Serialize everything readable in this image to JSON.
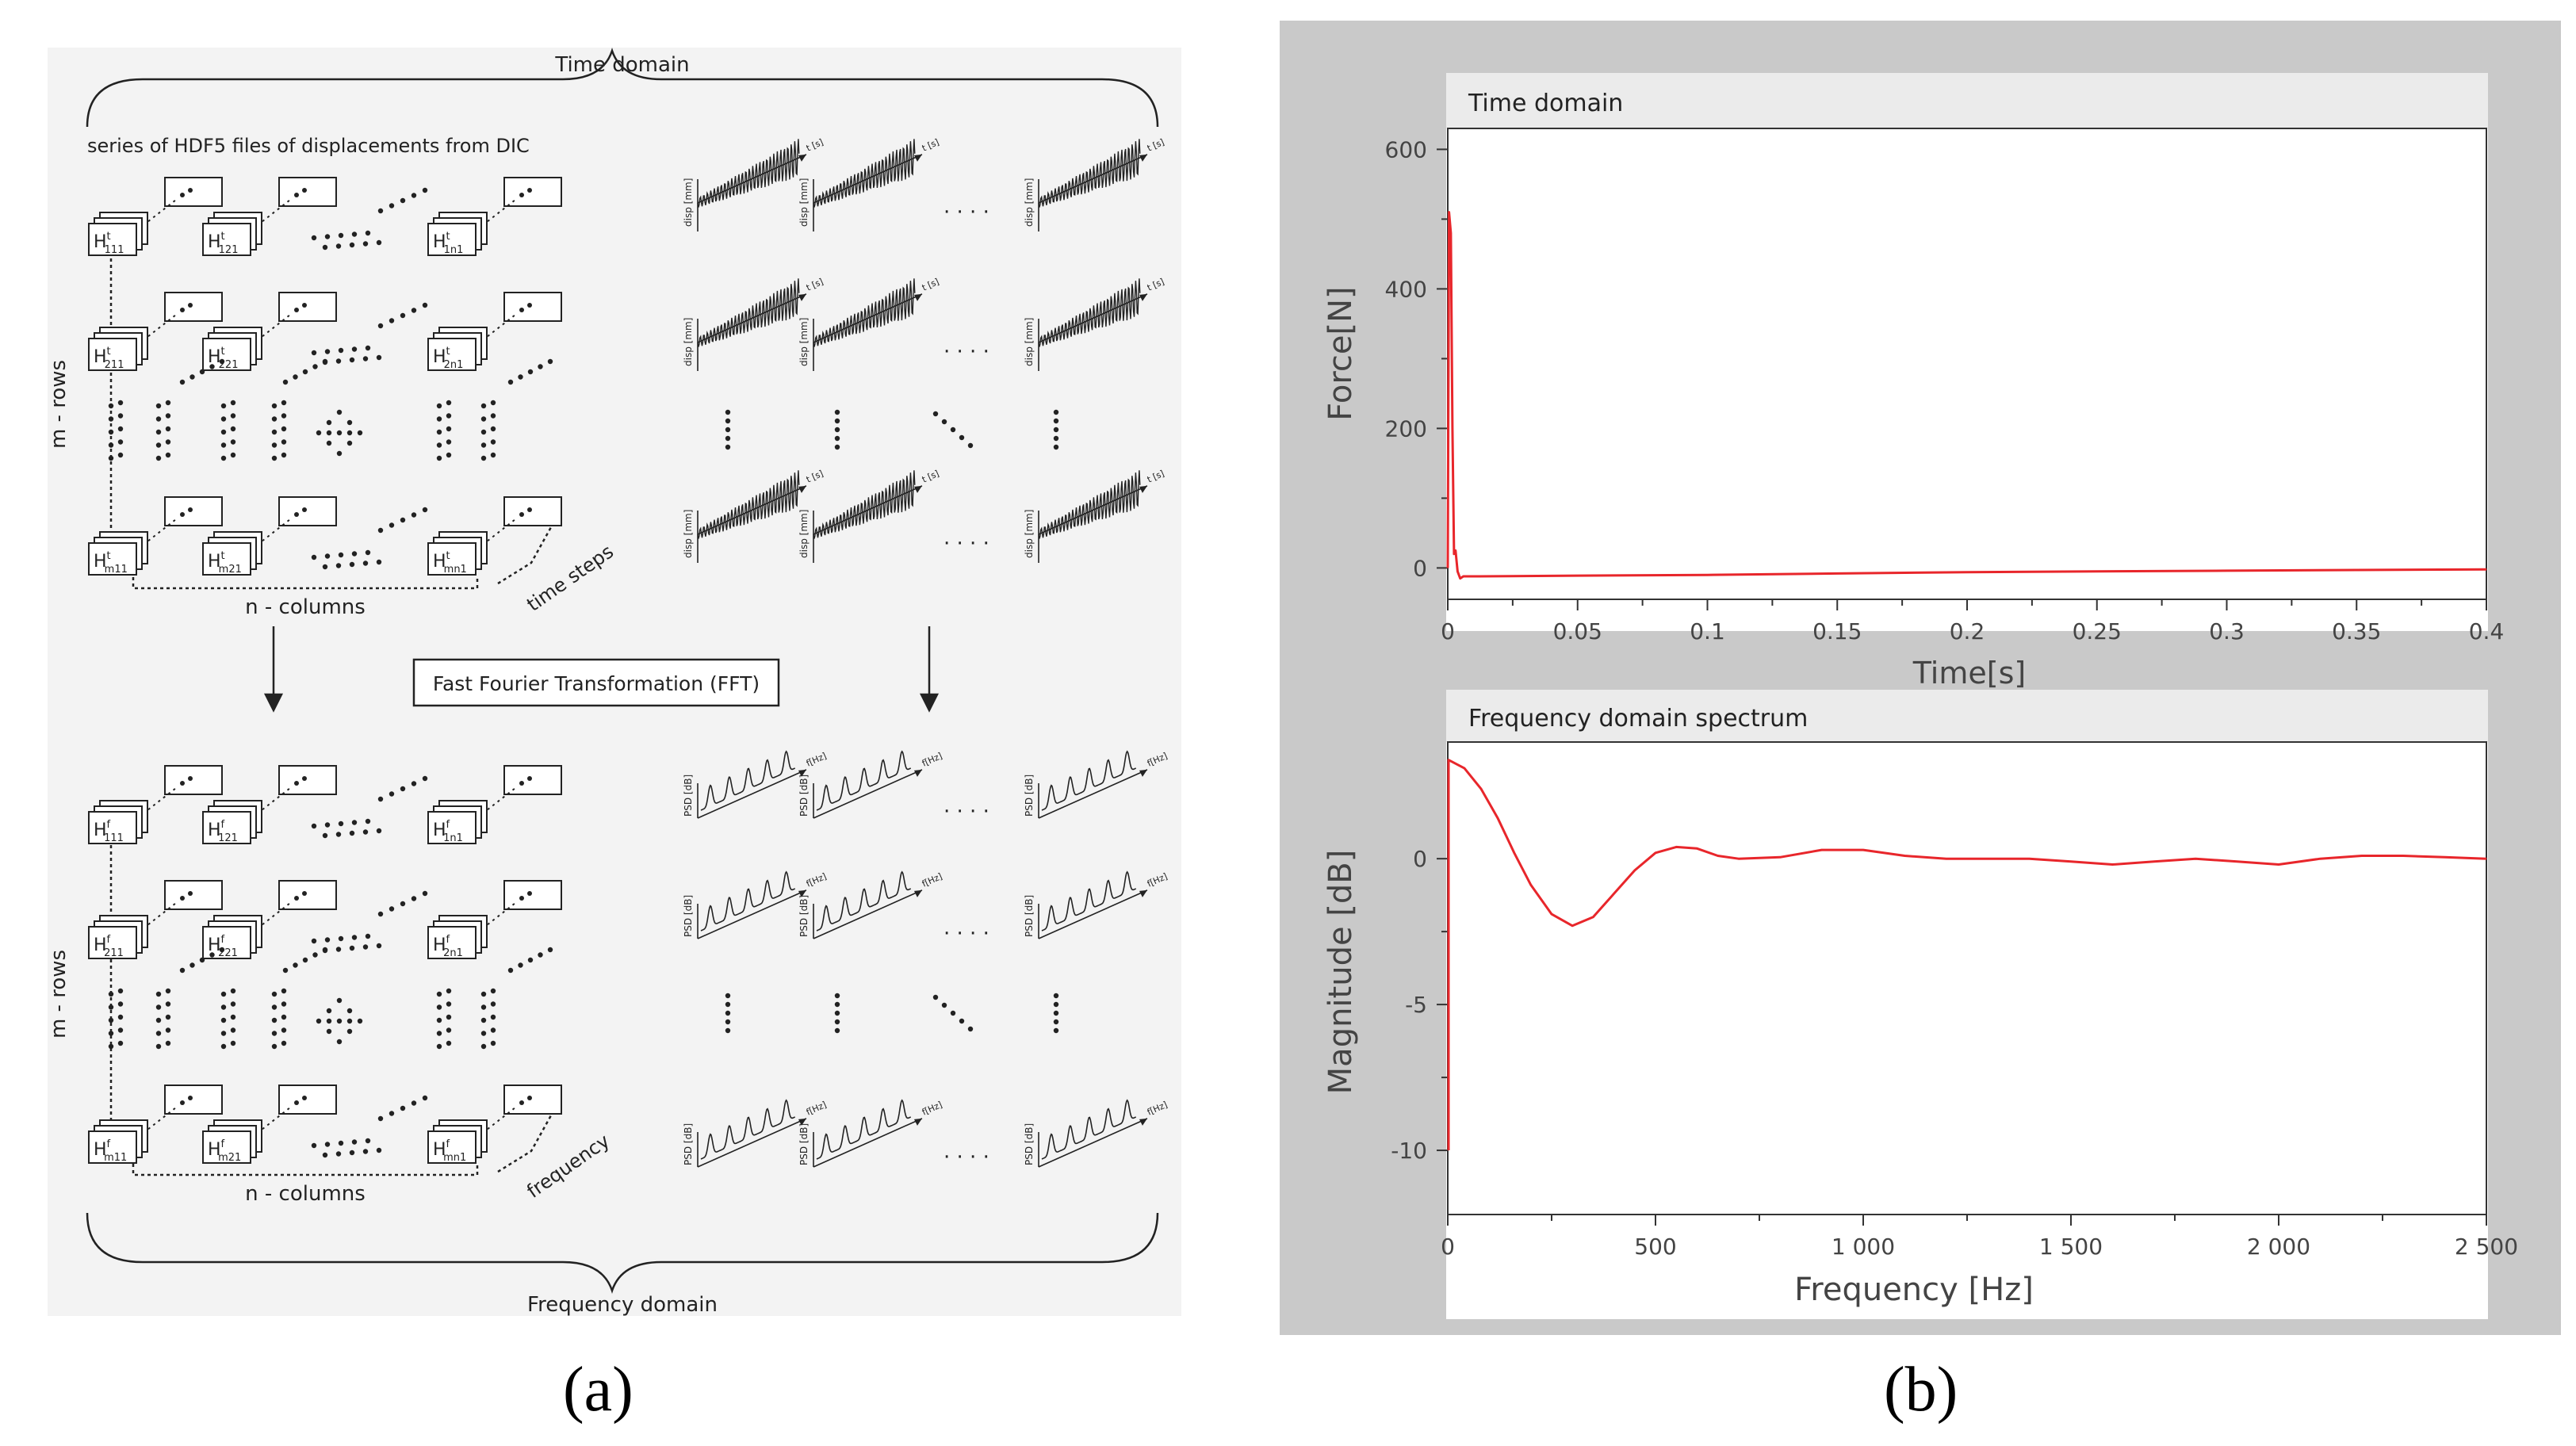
{
  "panel_a": {
    "caption": "(a)",
    "time_domain_label": "Time domain",
    "series_label": "series of HDF5 files of displacements from DIC",
    "m_rows_label": "m - rows",
    "n_columns_label": "n - columns",
    "time_steps_label": "time steps",
    "frequency_label": "frequency",
    "fft_label": "Fast Fourier Transformation (FFT)",
    "frequency_domain_label": "Frequency domain",
    "top_file_labels": [
      "111",
      "121",
      "1n1",
      "211",
      "221",
      "2n1",
      "m11",
      "m21",
      "mn1"
    ],
    "bottom_file_labels": [
      "111",
      "121",
      "1n1",
      "211",
      "221",
      "2n1",
      "m11",
      "m21",
      "mn1"
    ],
    "file_prefix": "H",
    "sup_t": "t",
    "sup_f": "f",
    "disp_axis_label": "disp [mm]",
    "t_axis_label": "t [s]",
    "psd_axis_label": "PSD [dB]",
    "f_axis_label": "f[Hz]",
    "ellipsis": "· · · ·"
  },
  "panel_b": {
    "caption": "(b)",
    "chart_data": [
      {
        "type": "line",
        "title": "Time domain",
        "xlabel": "Time[s]",
        "ylabel": "Force[N]",
        "xlim": [
          0,
          0.4
        ],
        "ylim": [
          -45,
          630
        ],
        "xticks": [
          "0",
          "0.05",
          "0.1",
          "0.15",
          "0.2",
          "0.25",
          "0.3",
          "0.35",
          "0.4"
        ],
        "yticks": [
          "600",
          "400",
          "200",
          "0"
        ],
        "xtick_values": [
          0,
          0.05,
          0.1,
          0.15,
          0.2,
          0.25,
          0.3,
          0.35,
          0.4
        ],
        "ytick_values": [
          600,
          400,
          200,
          0
        ],
        "color": "#e8262b",
        "series": [
          {
            "name": "Force",
            "x": [
              0,
              0.0005,
              0.0012,
              0.0018,
              0.0024,
              0.003,
              0.0038,
              0.0048,
              0.006,
              0.008,
              0.012,
              0.05,
              0.1,
              0.15,
              0.2,
              0.25,
              0.3,
              0.35,
              0.4
            ],
            "y": [
              0,
              510,
              480,
              200,
              20,
              25,
              -5,
              -15,
              -12,
              -12,
              -12,
              -11,
              -10,
              -8,
              -6,
              -5,
              -4,
              -3,
              -2
            ]
          }
        ]
      },
      {
        "type": "line",
        "title": "Frequency domain spectrum",
        "xlabel": "Frequency [Hz]",
        "ylabel": "Magnitude [dB]",
        "xlim": [
          0,
          2500
        ],
        "ylim": [
          -12.2,
          4
        ],
        "xticks": [
          "0",
          "500",
          "1 000",
          "1 500",
          "2 000",
          "2 500"
        ],
        "yticks": [
          "0",
          "-5",
          "-10"
        ],
        "xtick_values": [
          0,
          500,
          1000,
          1500,
          2000,
          2500
        ],
        "ytick_values": [
          0,
          -5,
          -10
        ],
        "color": "#e8262b",
        "series": [
          {
            "name": "Magnitude",
            "x": [
              0,
              40,
              80,
              120,
              160,
              200,
              250,
              300,
              350,
              400,
              450,
              500,
              550,
              600,
              650,
              700,
              800,
              900,
              1000,
              1100,
              1200,
              1300,
              1400,
              1500,
              1600,
              1700,
              1800,
              1900,
              2000,
              2100,
              2200,
              2300,
              2400,
              2500
            ],
            "y": [
              3.4,
              3.1,
              2.4,
              1.4,
              0.2,
              -0.9,
              -1.9,
              -2.3,
              -2.0,
              -1.2,
              -0.4,
              0.2,
              0.4,
              0.35,
              0.1,
              0.0,
              0.05,
              0.3,
              0.3,
              0.1,
              0.0,
              0.0,
              0.0,
              -0.1,
              -0.2,
              -0.1,
              0.0,
              -0.1,
              -0.2,
              0.0,
              0.1,
              0.1,
              0.05,
              0.0
            ]
          }
        ]
      }
    ]
  }
}
